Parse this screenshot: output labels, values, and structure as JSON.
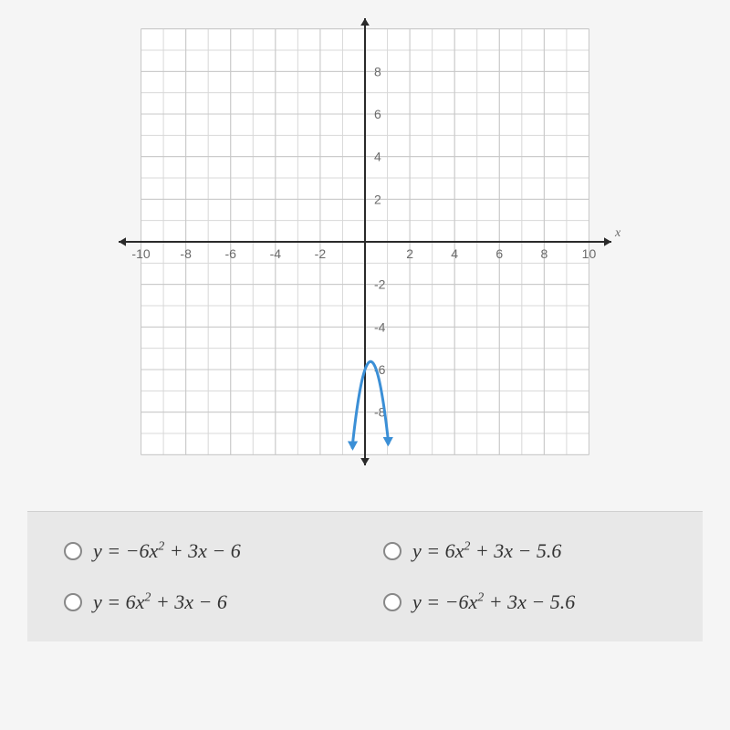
{
  "chart": {
    "type": "line",
    "xlim": [
      -11,
      11
    ],
    "ylim": [
      -10.5,
      10.5
    ],
    "xtick_positions": [
      -10,
      -8,
      -6,
      -4,
      -2,
      2,
      4,
      6,
      8,
      10
    ],
    "ytick_positions": [
      -8,
      -6,
      -4,
      -2,
      2,
      4,
      6,
      8
    ],
    "x_axis_label": "x",
    "grid_color": "#c8c8c8",
    "minor_grid_color": "#d8d8d8",
    "axis_color": "#2a2a2a",
    "tick_label_color": "#6a6a6a",
    "tick_fontsize": 14,
    "background_color": "#ffffff",
    "outer_background": "#f5f5f5",
    "curve_color": "#3b8fd6",
    "curve_width": 3,
    "arrow_size": 8,
    "parabola": {
      "a": -6,
      "b": 3,
      "c": -6,
      "vertex_x": 0.25,
      "vertex_y": -5.625,
      "x_range": [
        -0.57,
        1.05
      ]
    },
    "x_axis_arrow_color": "#2a2a2a",
    "y_axis_arrow_color": "#2a2a2a"
  },
  "answers": {
    "options": [
      {
        "id": "opt1",
        "html": "<i>y</i> = −6<i>x</i><sup>2</sup> + 3<i>x</i> − 6"
      },
      {
        "id": "opt2",
        "html": "<i>y</i> = 6<i>x</i><sup>2</sup> + 3<i>x</i> − 5.6"
      },
      {
        "id": "opt3",
        "html": "<i>y</i> = 6<i>x</i><sup>2</sup> + 3<i>x</i> − 6"
      },
      {
        "id": "opt4",
        "html": "<i>y</i> = −6<i>x</i><sup>2</sup> + 3<i>x</i> − 5.6"
      }
    ],
    "panel_background": "#e8e8e8",
    "radio_border": "#888888",
    "text_color": "#333333",
    "fontsize": 22
  }
}
